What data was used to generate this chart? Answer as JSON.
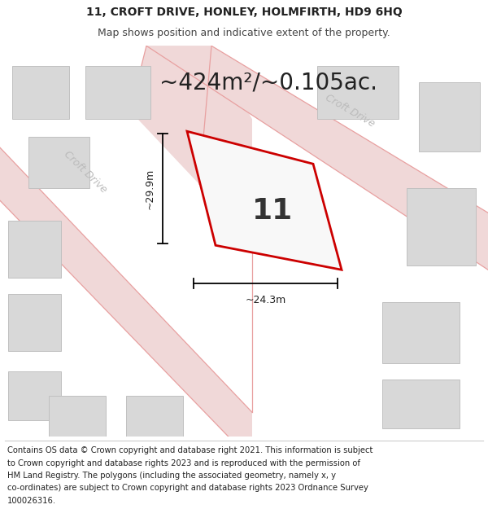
{
  "title": "11, CROFT DRIVE, HONLEY, HOLMFIRTH, HD9 6HQ",
  "subtitle": "Map shows position and indicative extent of the property.",
  "area_text": "~424m²/~0.105ac.",
  "property_number": "11",
  "width_label": "~24.3m",
  "height_label": "~29.9m",
  "footer_lines": [
    "Contains OS data © Crown copyright and database right 2021. This information is subject",
    "to Crown copyright and database rights 2023 and is reproduced with the permission of",
    "HM Land Registry. The polygons (including the associated geometry, namely x, y",
    "co-ordinates) are subject to Crown copyright and database rights 2023 Ordnance Survey",
    "100026316."
  ],
  "map_bg_color": "#f2f2f2",
  "road_color": "#f0d8d8",
  "road_line_color": "#e8a0a0",
  "building_color": "#d8d8d8",
  "building_edge_color": "#c0c0c0",
  "property_edge_color": "#cc0000",
  "title_fontsize": 10,
  "subtitle_fontsize": 9,
  "area_fontsize": 20,
  "number_fontsize": 26,
  "footer_fontsize": 7.2
}
